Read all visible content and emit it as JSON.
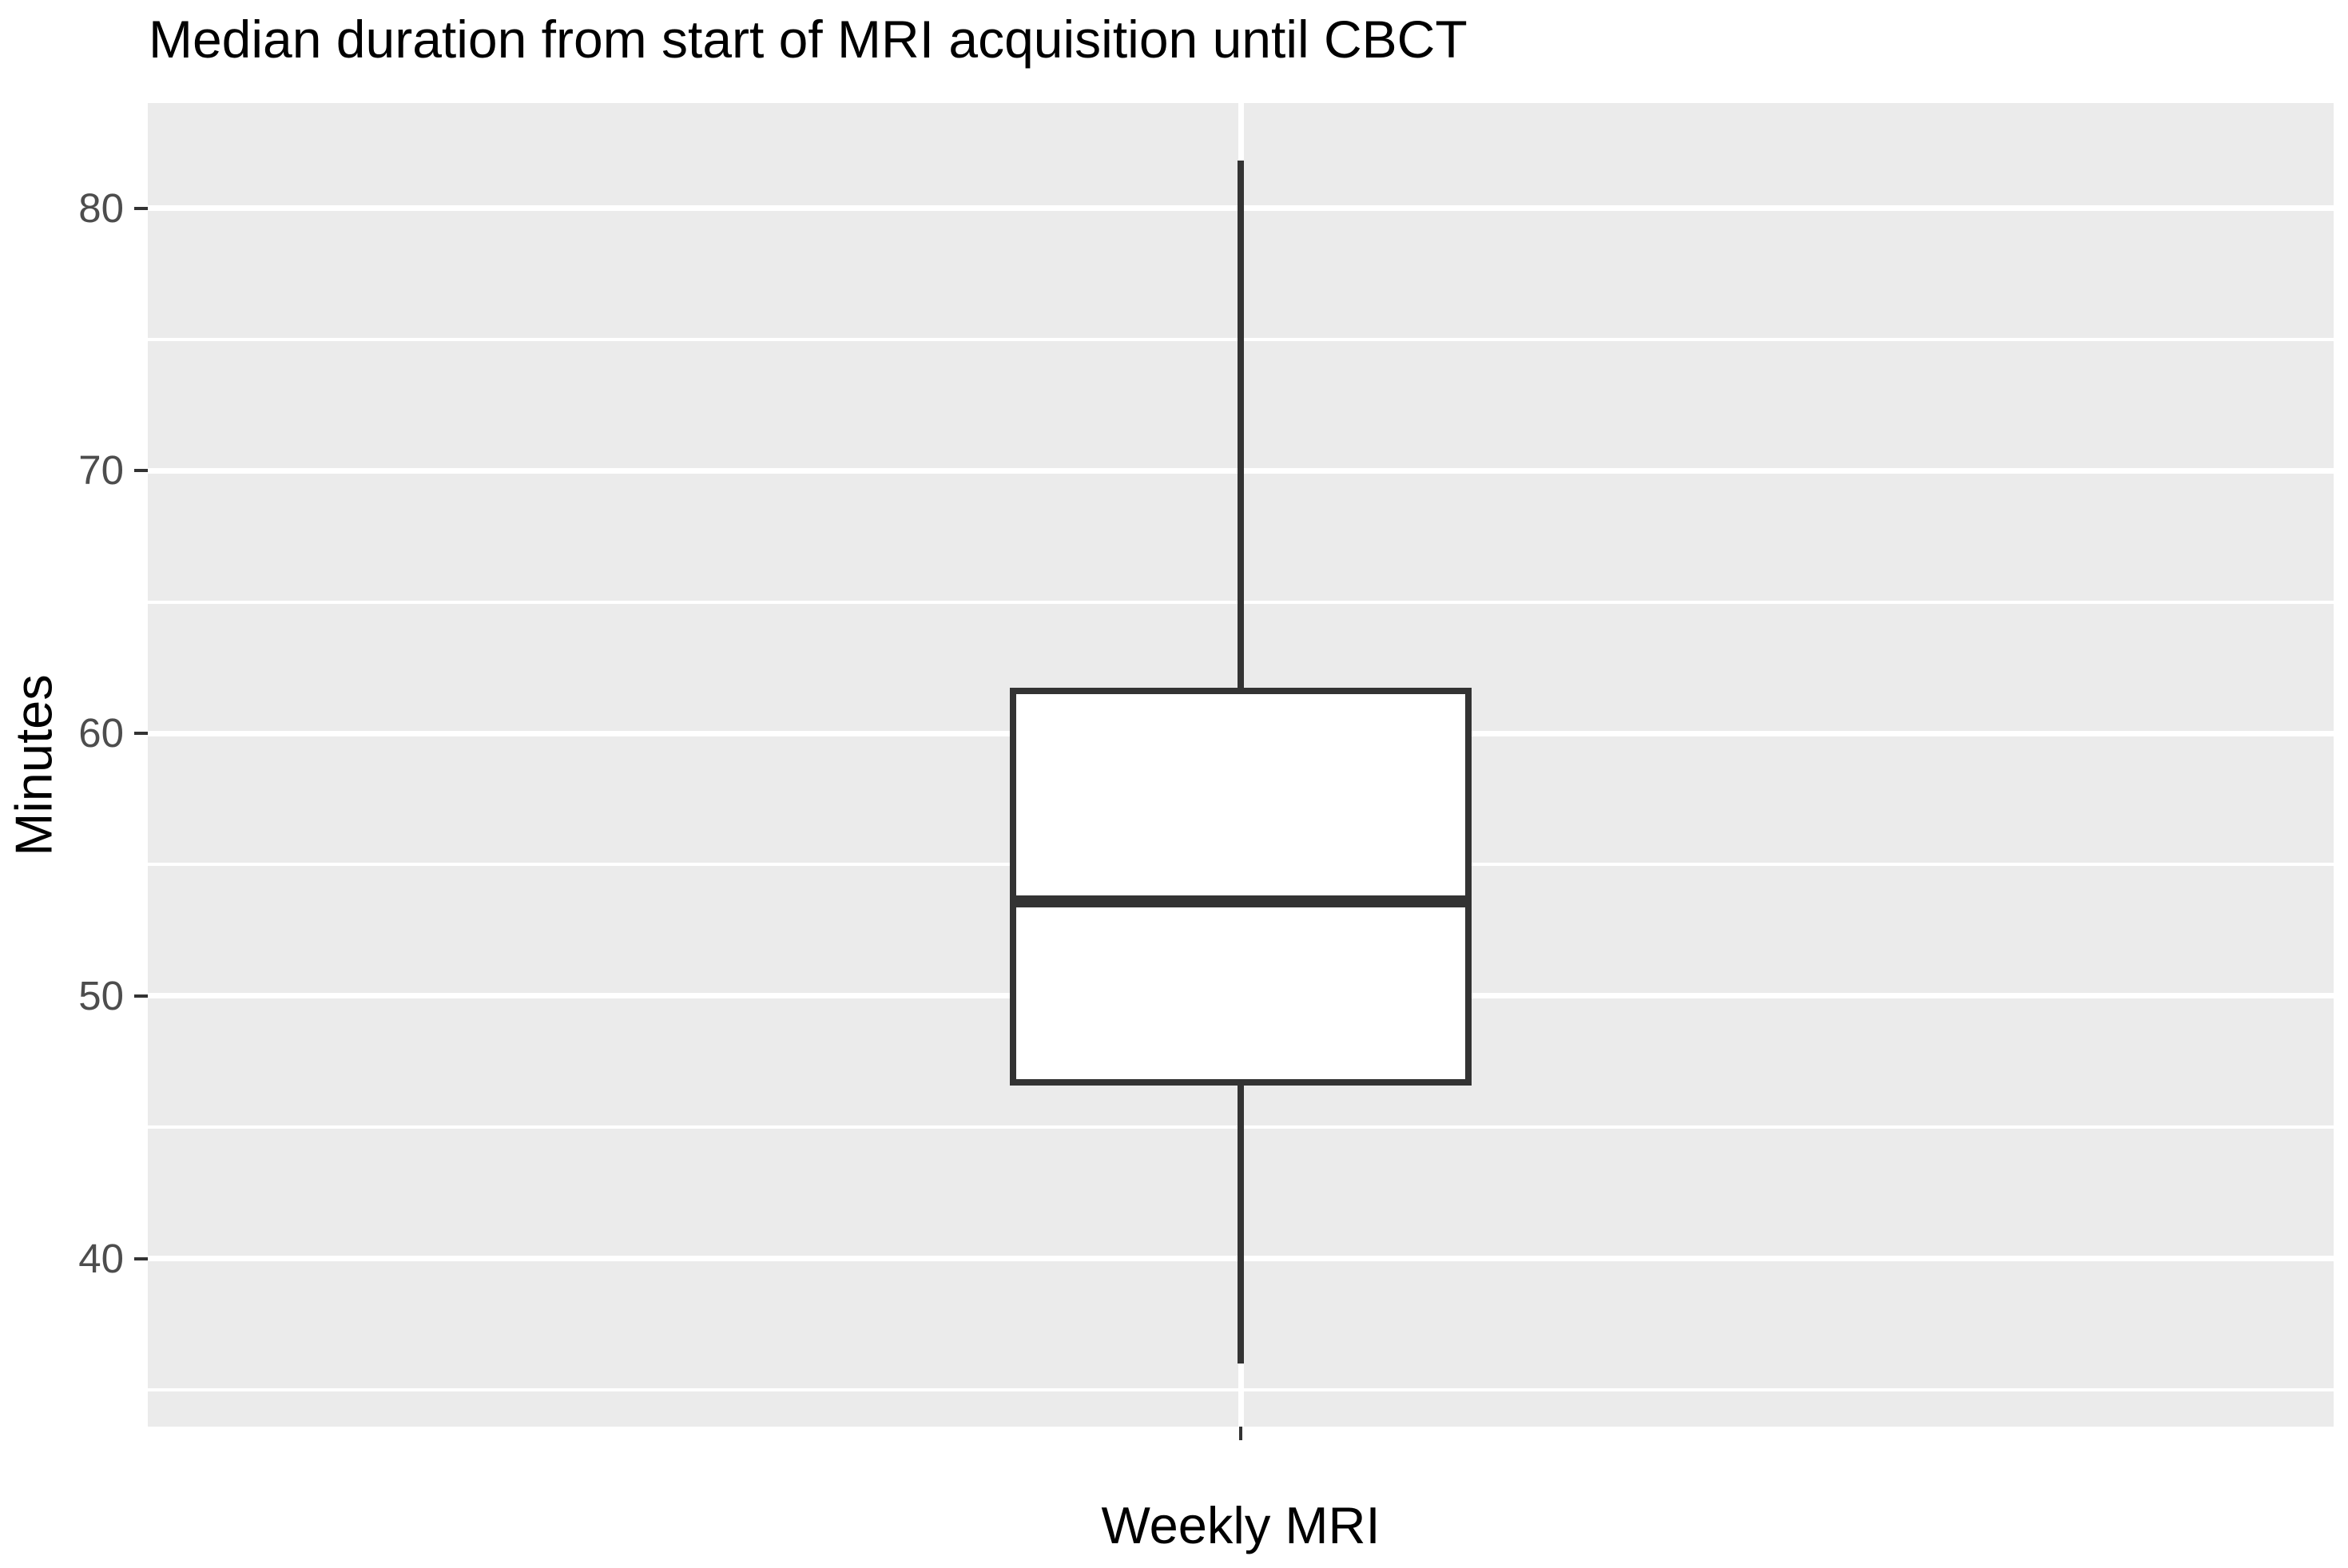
{
  "title": "Median duration from start of MRI acquisition until CBCT",
  "chart_data": {
    "type": "boxplot",
    "title": "Median duration from start of MRI acquisition until CBCT",
    "xlabel": "Weekly MRI",
    "ylabel": "Minutes",
    "series": [
      {
        "name": "Weekly MRI",
        "whisker_low": 36.0,
        "q1": 46.7,
        "median": 53.6,
        "q3": 61.6,
        "whisker_high": 81.8
      }
    ],
    "ylim": [
      33.6,
      84.0
    ],
    "yticks": [
      40,
      50,
      60,
      70,
      80
    ],
    "yticks_minor": [
      35,
      45,
      55,
      65,
      75
    ],
    "xticks_labels": [
      ""
    ],
    "legend": "none",
    "grid": {
      "major_horizontal": true,
      "minor_horizontal": true,
      "major_vertical_at_category": true,
      "color": "#FFFFFF"
    },
    "style": {
      "panel_background": "#EBEBEB",
      "plot_background": "#FFFFFF",
      "box_outline_color": "#333333",
      "box_fill_color": "#FFFFFF",
      "tick_mark_color": "#333333",
      "tick_label_color": "#4D4D4D",
      "title_color": "#000000",
      "axis_title_color": "#000000"
    }
  }
}
